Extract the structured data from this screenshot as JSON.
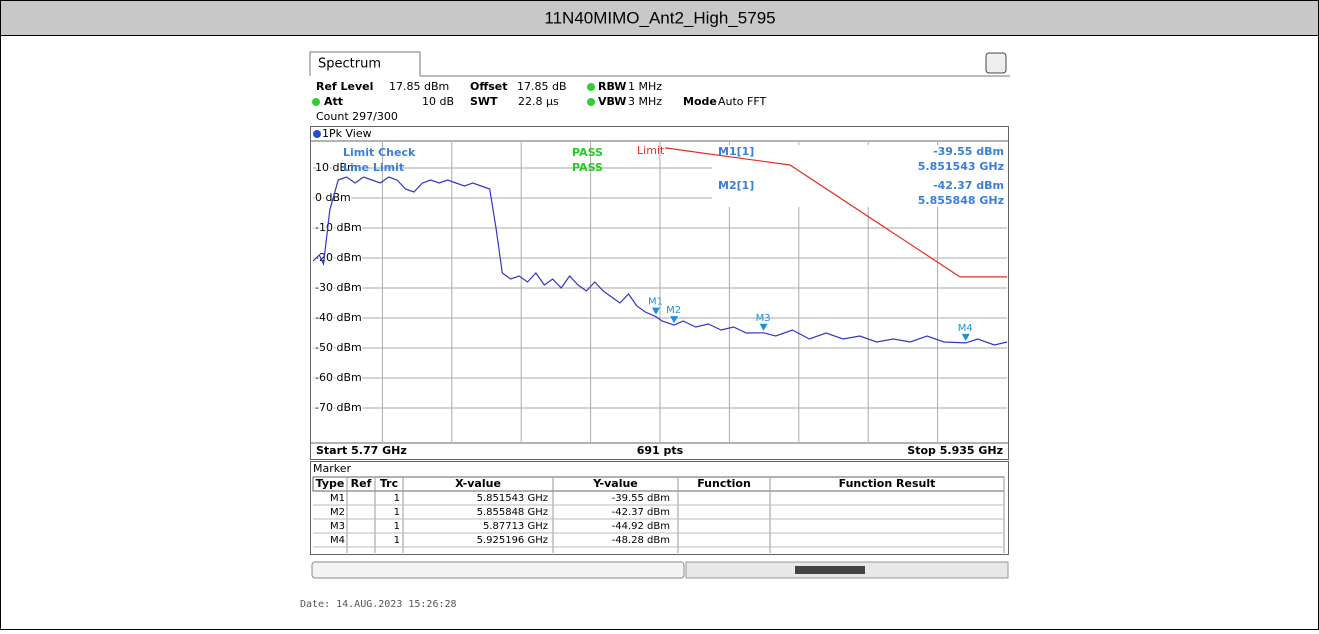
{
  "title": "11N40MIMO_Ant2_High_5795",
  "tab": "Spectrum",
  "settings": {
    "ref_label": "Ref Level",
    "ref_value": "17.85 dBm",
    "offset_label": "Offset",
    "offset_value": "17.85 dB",
    "rbw_label": "RBW",
    "rbw_value": "1 MHz",
    "att_label": "Att",
    "att_value": "10 dB",
    "swt_label": "SWT",
    "swt_value": "22.8 µs",
    "vbw_label": "VBW",
    "vbw_value": "3 MHz",
    "mode_label": "Mode",
    "mode_value": "Auto FFT",
    "count": "Count 297/300"
  },
  "view": "1Pk View",
  "limit_check": {
    "label": "Limit Check",
    "result": "PASS",
    "line_label": "Line Limit",
    "line_result": "PASS"
  },
  "marker_info": [
    {
      "name": "M1[1]",
      "level": "-39.55 dBm",
      "freq": "5.851543 GHz"
    },
    {
      "name": "M2[1]",
      "level": "-42.37 dBm",
      "freq": "5.855848 GHz"
    }
  ],
  "chart_data": {
    "type": "line",
    "xlim": [
      5.77,
      5.935
    ],
    "ylim": [
      -80,
      17.85
    ],
    "yticks": [
      {
        "value": 10,
        "label": "10 dBm"
      },
      {
        "value": 0,
        "label": "0 dBm"
      },
      {
        "value": -10,
        "label": "-10 dBm"
      },
      {
        "value": -20,
        "label": "-20 dBm"
      },
      {
        "value": -30,
        "label": "-30 dBm"
      },
      {
        "value": -40,
        "label": "-40 dBm"
      },
      {
        "value": -50,
        "label": "-50 dBm"
      },
      {
        "value": -60,
        "label": "-60 dBm"
      },
      {
        "value": -70,
        "label": "-70 dBm"
      }
    ],
    "grid": true,
    "series": [
      {
        "color": "#3535c8",
        "x": [
          5.77,
          5.7715,
          5.7725,
          5.774,
          5.776,
          5.778,
          5.78,
          5.782,
          5.784,
          5.786,
          5.788,
          5.79,
          5.792,
          5.794,
          5.796,
          5.798,
          5.8,
          5.802,
          5.804,
          5.806,
          5.808,
          5.81,
          5.812,
          5.8135,
          5.815,
          5.817,
          5.819,
          5.821,
          5.823,
          5.825,
          5.827,
          5.829,
          5.831,
          5.833,
          5.835,
          5.837,
          5.839,
          5.841,
          5.843,
          5.845,
          5.847,
          5.849,
          5.851543,
          5.853,
          5.855848,
          5.858,
          5.861,
          5.864,
          5.867,
          5.87,
          5.873,
          5.87713,
          5.88,
          5.884,
          5.888,
          5.892,
          5.896,
          5.9,
          5.904,
          5.908,
          5.912,
          5.916,
          5.92,
          5.925196,
          5.928,
          5.932,
          5.935
        ],
        "values": [
          -21,
          -19,
          -22,
          -4,
          6,
          7,
          5,
          7,
          6,
          5,
          7,
          6,
          3,
          2,
          5,
          6,
          5,
          6,
          5,
          4,
          5,
          4,
          3,
          -10,
          -25,
          -27,
          -26,
          -28,
          -25,
          -29,
          -27,
          -30,
          -26,
          -29,
          -31,
          -28,
          -31,
          -33,
          -35,
          -32,
          -36,
          -38,
          -39.55,
          -41,
          -42.37,
          -41,
          -43,
          -42,
          -44,
          -43,
          -45,
          -44.92,
          -46,
          -44,
          -47,
          -45,
          -47,
          -46,
          -48,
          -47,
          -48,
          -46,
          -48,
          -48.28,
          -47,
          -49,
          -48
        ]
      }
    ],
    "limit": {
      "name": "Limit",
      "color": "#e03020",
      "x": [
        5.8537,
        5.8834,
        5.9238,
        5.935
      ],
      "values": [
        16.7,
        11,
        -26.3,
        -26.3
      ]
    },
    "markers": [
      {
        "name": "M1",
        "x": 5.851543,
        "y": -39.55
      },
      {
        "name": "M2",
        "x": 5.855848,
        "y": -42.37
      },
      {
        "name": "M3",
        "x": 5.87713,
        "y": -44.92
      },
      {
        "name": "M4",
        "x": 5.925196,
        "y": -48.28
      }
    ],
    "start": "Start 5.77 GHz",
    "points": "691 pts",
    "stop": "Stop 5.935 GHz"
  },
  "marker_table": {
    "title": "Marker",
    "columns": [
      "Type",
      "Ref",
      "Trc",
      "X-value",
      "Y-value",
      "Function",
      "Function Result"
    ],
    "rows": [
      {
        "type": "M1",
        "trc": "1",
        "x": "5.851543 GHz",
        "y": "-39.55 dBm"
      },
      {
        "type": "M2",
        "trc": "1",
        "x": "5.855848 GHz",
        "y": "-42.37 dBm"
      },
      {
        "type": "M3",
        "trc": "1",
        "x": "5.87713 GHz",
        "y": "-44.92 dBm"
      },
      {
        "type": "M4",
        "trc": "1",
        "x": "5.925196 GHz",
        "y": "-48.28 dBm"
      }
    ]
  },
  "date": "Date: 14.AUG.2023  15:26:28"
}
